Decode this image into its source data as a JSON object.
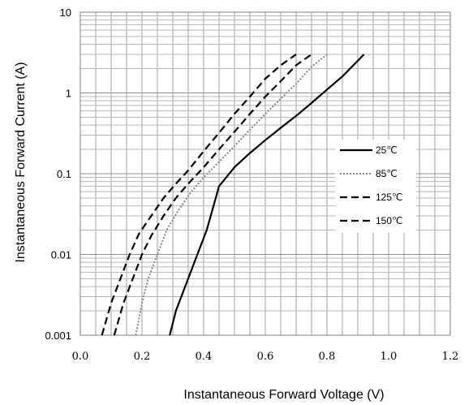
{
  "chart_data": {
    "type": "line",
    "xlabel": "Instantaneous Forward Voltage (V)",
    "ylabel": "Instantaneous Forward Current (A)",
    "xlim": [
      0.0,
      1.2
    ],
    "ylim": [
      0.001,
      10
    ],
    "y_scale": "log",
    "x_tick_labels": [
      "0.0",
      "0.2",
      "0.4",
      "0.6",
      "0.8",
      "1.0",
      "1.2"
    ],
    "x_ticks": [
      0.0,
      0.2,
      0.4,
      0.6,
      0.8,
      1.0,
      1.2
    ],
    "y_tick_labels": [
      "0.001",
      "0.01",
      "0.1",
      "1",
      "10"
    ],
    "y_ticks": [
      0.001,
      0.01,
      0.1,
      1,
      10
    ],
    "grid": true,
    "legend_position": "right",
    "series": [
      {
        "name": "25℃",
        "style": "solid",
        "color": "#000000",
        "x": [
          0.29,
          0.31,
          0.34,
          0.37,
          0.41,
          0.45,
          0.5,
          0.55,
          0.6,
          0.65,
          0.7,
          0.75,
          0.8,
          0.85,
          0.9,
          0.92
        ],
        "y": [
          0.001,
          0.002,
          0.004,
          0.008,
          0.02,
          0.07,
          0.12,
          0.18,
          0.26,
          0.37,
          0.52,
          0.75,
          1.1,
          1.6,
          2.5,
          3.0
        ]
      },
      {
        "name": "85℃",
        "style": "dotted",
        "color": "#888888",
        "x": [
          0.18,
          0.2,
          0.22,
          0.25,
          0.28,
          0.32,
          0.36,
          0.4,
          0.45,
          0.5,
          0.55,
          0.6,
          0.65,
          0.7,
          0.75,
          0.8
        ],
        "y": [
          0.001,
          0.0025,
          0.005,
          0.01,
          0.02,
          0.036,
          0.06,
          0.09,
          0.14,
          0.22,
          0.35,
          0.55,
          0.85,
          1.3,
          2.1,
          3.0
        ]
      },
      {
        "name": "125℃",
        "style": "dashed",
        "color": "#000000",
        "x": [
          0.11,
          0.14,
          0.17,
          0.2,
          0.23,
          0.27,
          0.31,
          0.35,
          0.4,
          0.45,
          0.5,
          0.55,
          0.6,
          0.65,
          0.7,
          0.75
        ],
        "y": [
          0.001,
          0.0025,
          0.005,
          0.01,
          0.017,
          0.03,
          0.05,
          0.075,
          0.12,
          0.2,
          0.33,
          0.55,
          0.9,
          1.4,
          2.2,
          3.0
        ]
      },
      {
        "name": "150℃",
        "style": "dashed",
        "color": "#000000",
        "x": [
          0.07,
          0.1,
          0.13,
          0.16,
          0.19,
          0.23,
          0.27,
          0.31,
          0.35,
          0.4,
          0.45,
          0.5,
          0.55,
          0.6,
          0.65,
          0.7
        ],
        "y": [
          0.001,
          0.0025,
          0.005,
          0.01,
          0.018,
          0.03,
          0.05,
          0.075,
          0.11,
          0.19,
          0.32,
          0.55,
          0.9,
          1.5,
          2.2,
          3.0
        ]
      }
    ]
  }
}
